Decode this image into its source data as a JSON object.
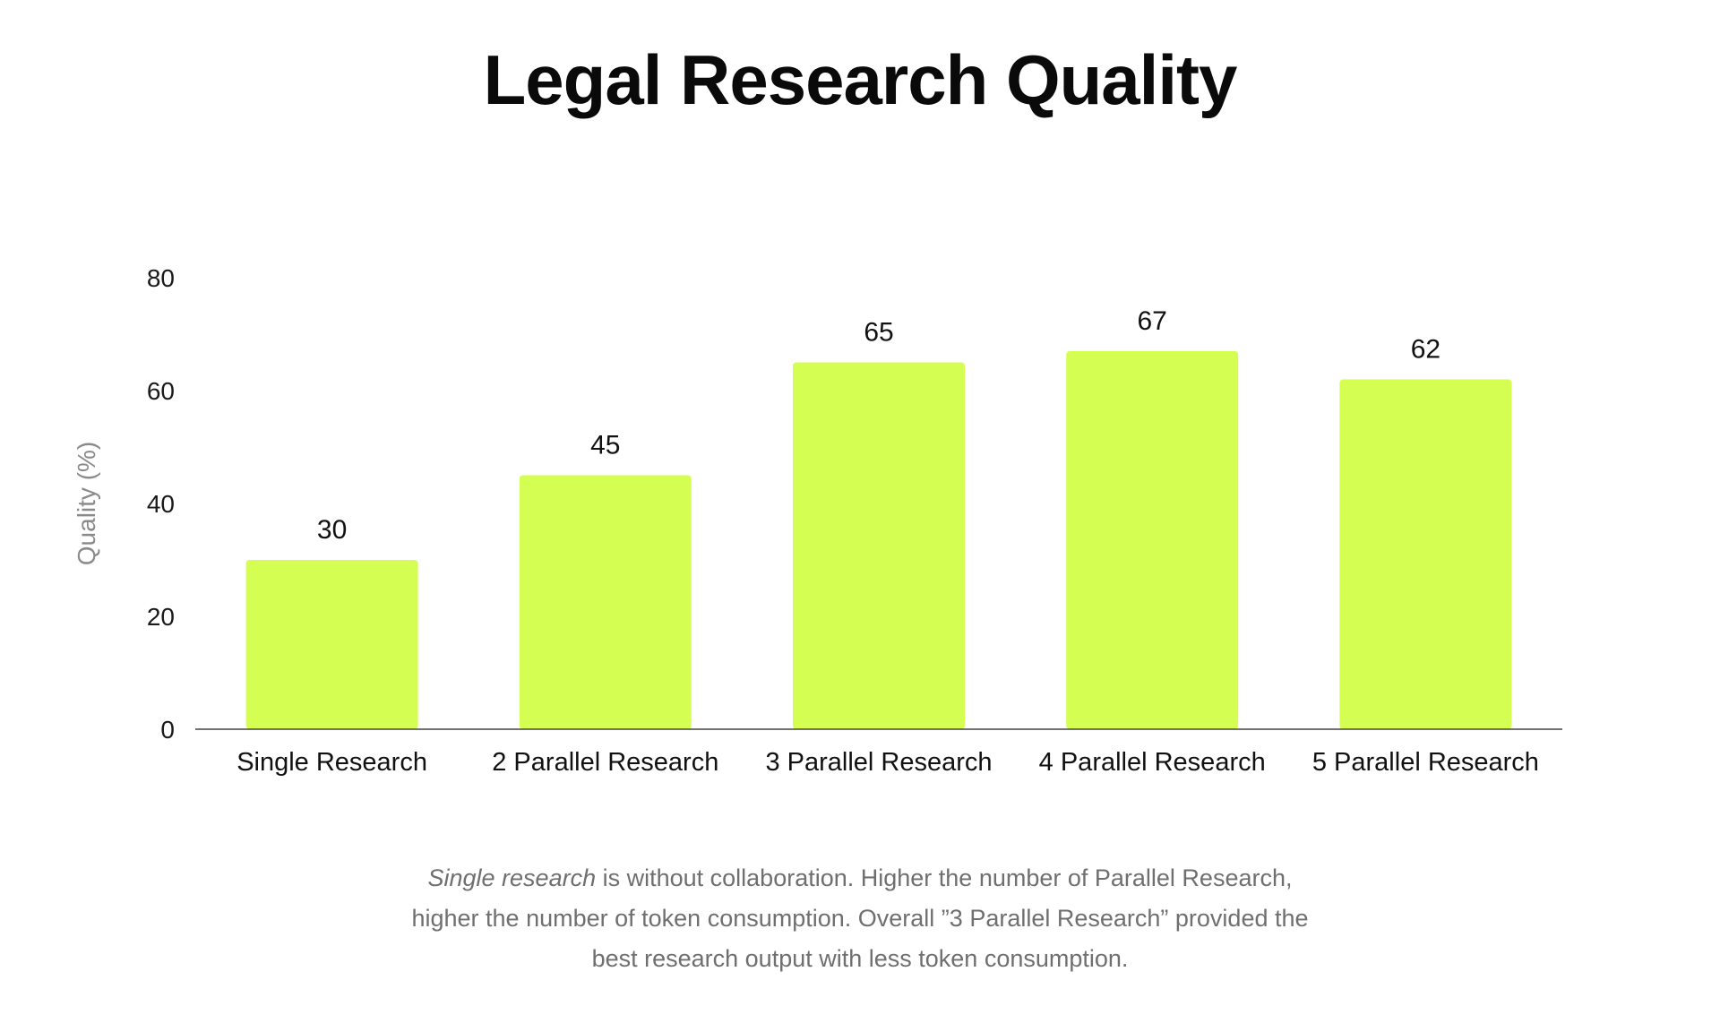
{
  "chart_data": {
    "type": "bar",
    "title": "Legal Research Quality",
    "categories": [
      "Single Research",
      "2 Parallel Research",
      "3 Parallel Research",
      "4 Parallel Research",
      "5 Parallel Research"
    ],
    "values": [
      30,
      45,
      65,
      67,
      62
    ],
    "data_labels": [
      "30",
      "45",
      "65",
      "67",
      "62"
    ],
    "xlabel": "",
    "ylabel": "Quality (%)",
    "ylim": [
      0,
      80
    ],
    "yticks": [
      0,
      20,
      40,
      60,
      80
    ],
    "grid": false,
    "legend": "none",
    "bar_color": "#d4ff52"
  },
  "caption": {
    "lead_italic": "Single research",
    "line1_rest": " is without collaboration. Higher the number of Parallel Research,",
    "line2": "higher the number of token consumption. Overall ”3 Parallel Research” provided the",
    "line3": "best research output with less token consumption."
  },
  "colors": {
    "bar": "#d4ff52",
    "axis": "#444444",
    "ylabel": "#8a8a8a",
    "caption": "#6f6f6f",
    "title": "#0a0a0a"
  }
}
